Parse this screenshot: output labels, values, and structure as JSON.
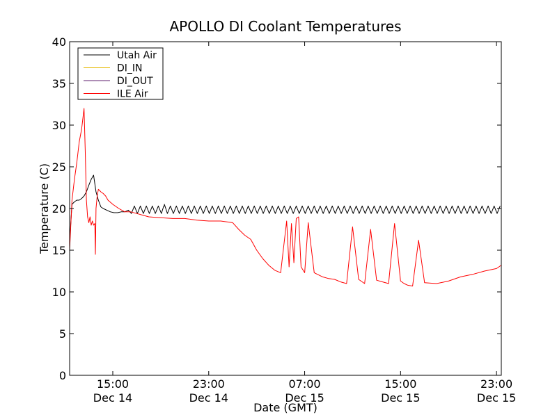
{
  "chart_data": {
    "type": "line",
    "title": "APOLLO DI Coolant Temperatures",
    "xlabel": "Date (GMT)",
    "ylabel": "Temperature (C)",
    "x_unit": "hours since Dec 14 00:00 GMT",
    "xlim": [
      11.4,
      47.4
    ],
    "ylim": [
      0,
      40
    ],
    "grid": false,
    "legend_position": "top-left",
    "y_ticks": [
      {
        "value": 0,
        "label": "0"
      },
      {
        "value": 5,
        "label": "5"
      },
      {
        "value": 10,
        "label": "10"
      },
      {
        "value": 15,
        "label": "15"
      },
      {
        "value": 20,
        "label": "20"
      },
      {
        "value": 25,
        "label": "25"
      },
      {
        "value": 30,
        "label": "30"
      },
      {
        "value": 35,
        "label": "35"
      },
      {
        "value": 40,
        "label": "40"
      }
    ],
    "x_ticks": [
      {
        "value": 15,
        "time": "15:00",
        "date": "Dec 14"
      },
      {
        "value": 23,
        "time": "23:00",
        "date": "Dec 14"
      },
      {
        "value": 31,
        "time": "07:00",
        "date": "Dec 15"
      },
      {
        "value": 39,
        "time": "15:00",
        "date": "Dec 15"
      },
      {
        "value": 47,
        "time": "23:00",
        "date": "Dec 15"
      }
    ],
    "series": [
      {
        "name": "Utah Air",
        "color": "#000000",
        "x": [
          11.4,
          11.6,
          11.8,
          12.0,
          12.2,
          12.4,
          12.6,
          12.8,
          13.0,
          13.2,
          13.4,
          13.6,
          13.8,
          14.0,
          14.2,
          14.5,
          14.8,
          15.1,
          15.4,
          15.7,
          16.0,
          16.3
        ],
        "y": [
          16.0,
          20.5,
          20.8,
          21.0,
          21.0,
          21.2,
          21.5,
          22.0,
          22.8,
          23.5,
          24.0,
          22.0,
          21.0,
          20.2,
          20.0,
          19.8,
          19.6,
          19.5,
          19.5,
          19.6,
          19.6,
          19.8
        ],
        "oscillation": {
          "x_start": 16.3,
          "x_end": 47.4,
          "low": 19.4,
          "high": 20.3,
          "period_hours": 0.5
        },
        "spikes": [
          {
            "x": 19.3,
            "y": 20.5
          }
        ]
      },
      {
        "name": "DI_IN",
        "color": "#e6b800",
        "x": [],
        "y": []
      },
      {
        "name": "DI_OUT",
        "color": "#5c1c6e",
        "x": [],
        "y": []
      },
      {
        "name": "ILE Air",
        "color": "#ff0000",
        "x": [
          11.4,
          11.6,
          11.8,
          12.0,
          12.2,
          12.4,
          12.6,
          12.7,
          12.8,
          12.9,
          13.0,
          13.1,
          13.2,
          13.3,
          13.4,
          13.5,
          13.55,
          13.6,
          13.7,
          13.8,
          14.0,
          14.2,
          14.4,
          14.6,
          15.0,
          15.5,
          16.0,
          16.5,
          17.0,
          17.5,
          18.0,
          19.0,
          20.0,
          21.0,
          22.0,
          23.0,
          24.0,
          25.0,
          25.5,
          26.0,
          26.5,
          27.0,
          27.5,
          28.0,
          28.5,
          29.0,
          29.5,
          29.7,
          29.9,
          30.1,
          30.3,
          30.5,
          30.7,
          31.0,
          31.3,
          31.8,
          32.5,
          33.0,
          33.5,
          34.0,
          34.5,
          35.0,
          35.5,
          36.0,
          36.5,
          37.0,
          37.5,
          38.0,
          38.5,
          39.0,
          39.3,
          39.6,
          40.0,
          40.5,
          41.0,
          42.0,
          43.0,
          44.0,
          45.0,
          46.0,
          47.0,
          47.4
        ],
        "y": [
          15.0,
          21.0,
          23.5,
          25.5,
          28.0,
          29.5,
          32.0,
          27.0,
          21.0,
          19.0,
          18.3,
          19.0,
          18.0,
          18.5,
          18.0,
          18.2,
          14.5,
          20.0,
          21.5,
          22.3,
          22.0,
          21.8,
          21.5,
          21.0,
          20.5,
          20.0,
          19.6,
          19.6,
          19.4,
          19.2,
          19.0,
          18.9,
          18.8,
          18.8,
          18.6,
          18.5,
          18.5,
          18.3,
          17.5,
          16.8,
          16.3,
          15.0,
          14.0,
          13.2,
          12.6,
          12.3,
          18.5,
          13.0,
          18.2,
          13.5,
          18.8,
          19.0,
          13.0,
          12.3,
          18.3,
          12.3,
          11.8,
          11.6,
          11.5,
          11.2,
          11.0,
          17.8,
          11.5,
          11.0,
          17.5,
          11.4,
          11.2,
          11.0,
          18.2,
          11.3,
          11.0,
          10.8,
          10.7,
          16.2,
          11.1,
          11.0,
          11.3,
          11.8,
          12.1,
          12.5,
          12.8,
          13.2
        ]
      }
    ]
  }
}
